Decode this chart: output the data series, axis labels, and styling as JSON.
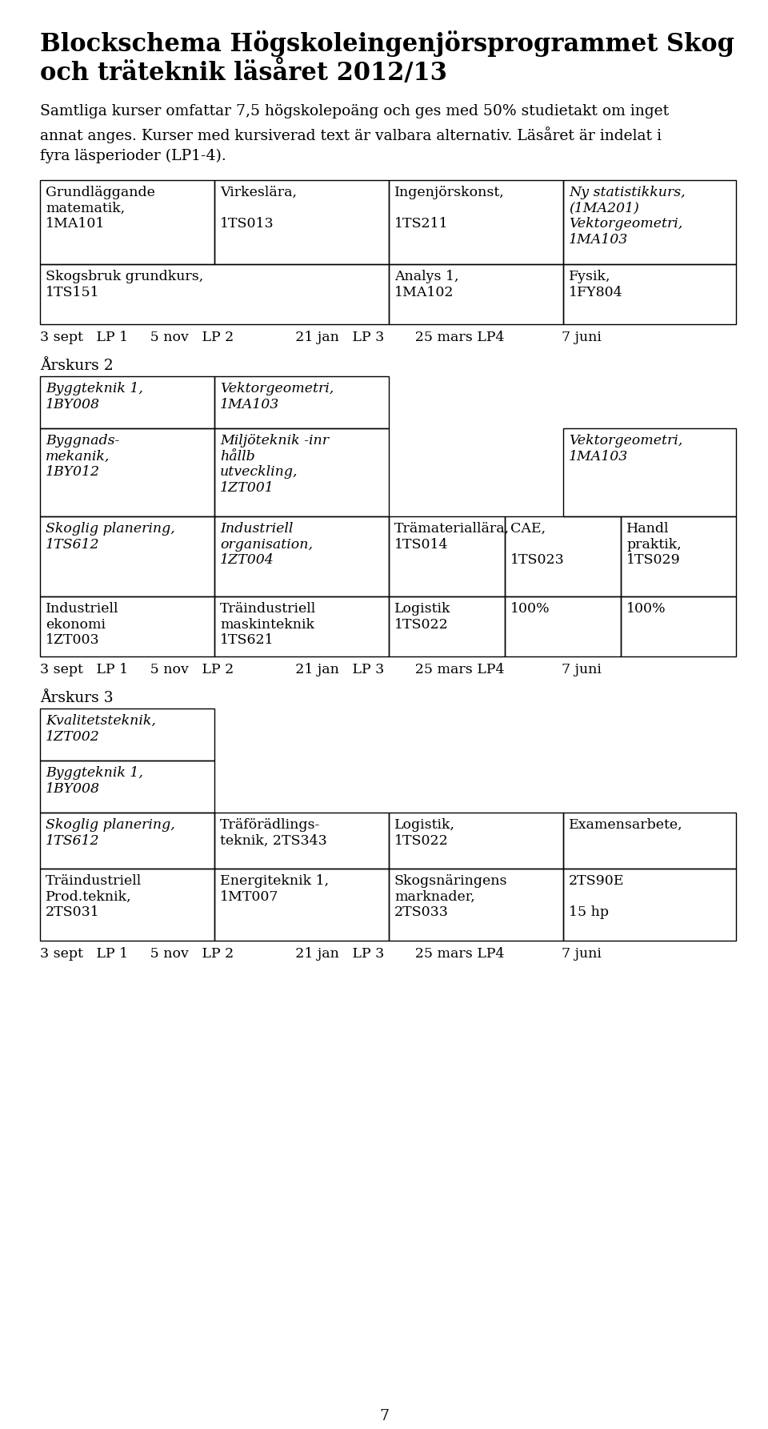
{
  "bg": "#ffffff",
  "fg": "#000000",
  "title1": "Blockschema Högskoleingenjörsprogrammet Skog",
  "title2": "och träteknik läsåret 2012/13",
  "intro1": "Samtliga kurser omfattar 7,5 högskolepoäng och ges med 50% studietakt om inget",
  "intro2": "annat anges. Kurser med kursiverad text är valbara alternativ. Läsåret är indelat i",
  "intro3": "fyra läsperioder (LP1-4).",
  "timeline": "3 sept   LP 1     5 nov   LP 2              21 jan   LP 3       25 mars LP4             7 juni",
  "page_num": "7"
}
